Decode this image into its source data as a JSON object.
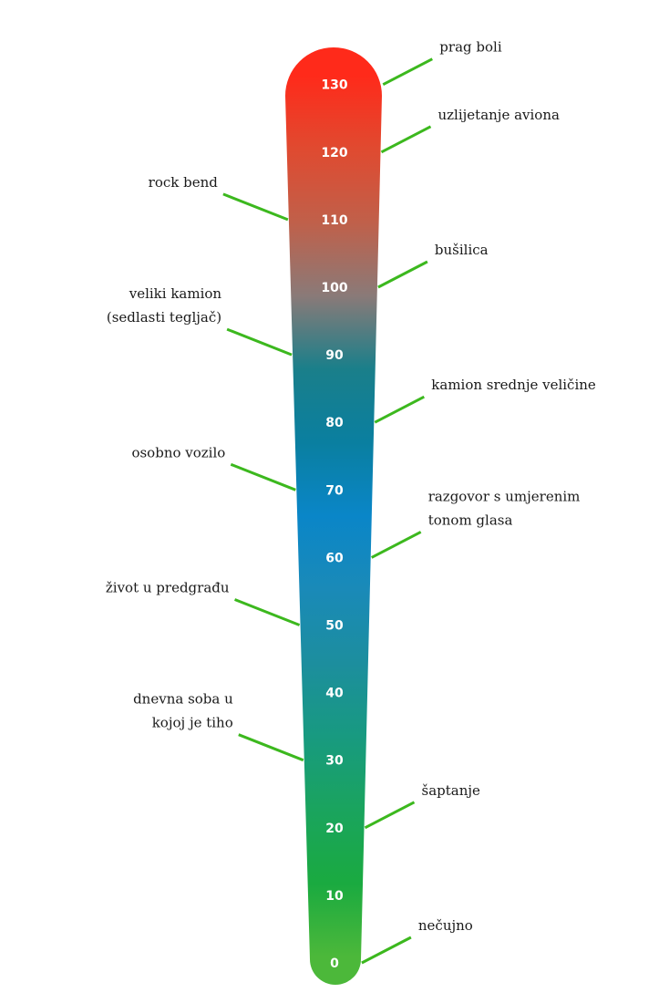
{
  "scale": {
    "ticks": [
      0,
      10,
      20,
      30,
      40,
      50,
      60,
      70,
      80,
      90,
      100,
      110,
      120,
      130
    ],
    "gradient_colors": [
      "#4cb83a",
      "#1aaa40",
      "#1aa45e",
      "#189a80",
      "#1c8e9e",
      "#1a8ab8",
      "#0a86c8",
      "#0a7fa0",
      "#1a7f8a",
      "#8a7a78",
      "#c0604a",
      "#e04a30",
      "#ff2a1a"
    ],
    "leader_color": "#3cb81e"
  },
  "annotations": [
    {
      "value": 130,
      "side": "right",
      "lines": [
        "prag boli"
      ]
    },
    {
      "value": 120,
      "side": "right",
      "lines": [
        "uzlijetanje aviona"
      ]
    },
    {
      "value": 110,
      "side": "left",
      "lines": [
        "rock bend"
      ]
    },
    {
      "value": 100,
      "side": "right",
      "lines": [
        "bušilica"
      ]
    },
    {
      "value": 90,
      "side": "left",
      "lines": [
        "veliki kamion",
        "(sedlasti tegljač)"
      ]
    },
    {
      "value": 80,
      "side": "right",
      "lines": [
        "kamion srednje veličine"
      ]
    },
    {
      "value": 70,
      "side": "left",
      "lines": [
        "osobno vozilo"
      ]
    },
    {
      "value": 60,
      "side": "right",
      "lines": [
        "razgovor s umjerenim",
        "tonom glasa"
      ]
    },
    {
      "value": 50,
      "side": "left",
      "lines": [
        "život u predgrađu"
      ]
    },
    {
      "value": 30,
      "side": "left",
      "lines": [
        "dnevna soba u",
        "kojoj je tiho"
      ]
    },
    {
      "value": 20,
      "side": "right",
      "lines": [
        "šaptanje"
      ]
    },
    {
      "value": 0,
      "side": "right",
      "lines": [
        "nečujno"
      ]
    }
  ]
}
